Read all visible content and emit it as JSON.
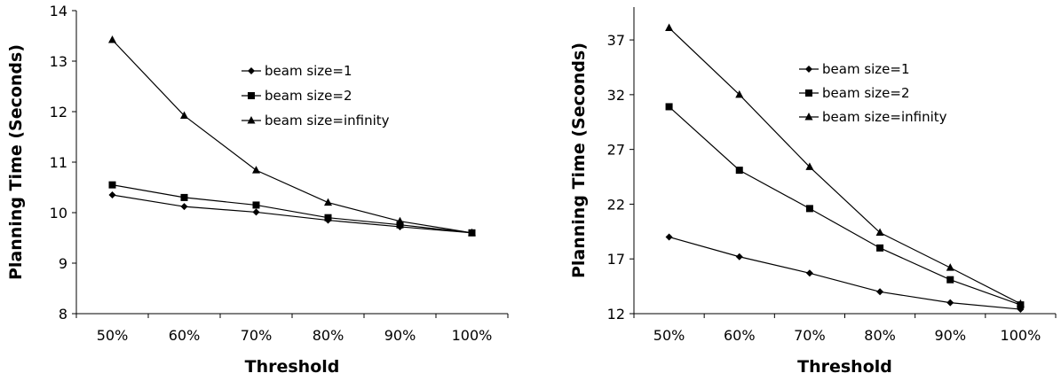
{
  "chart_data": [
    {
      "type": "line",
      "categories": [
        "50%",
        "60%",
        "70%",
        "80%",
        "90%",
        "100%"
      ],
      "xlabel": "Threshold",
      "ylabel": "Planning Time (Seconds)",
      "ylim": [
        8,
        14
      ],
      "yticks": [
        "8",
        "9",
        "10",
        "11",
        "12",
        "13",
        "14"
      ],
      "grid": false,
      "legend_position": "top-right",
      "series": [
        {
          "name": "beam size=1",
          "marker": "diamond",
          "values": [
            10.35,
            10.12,
            10.01,
            9.85,
            9.72,
            9.6
          ]
        },
        {
          "name": "beam size=2",
          "marker": "square",
          "values": [
            10.55,
            10.3,
            10.15,
            9.9,
            9.76,
            9.6
          ]
        },
        {
          "name": "beam size=infinity",
          "marker": "triangle",
          "values": [
            13.42,
            11.92,
            10.84,
            10.2,
            9.83,
            9.6
          ]
        }
      ]
    },
    {
      "type": "line",
      "categories": [
        "50%",
        "60%",
        "70%",
        "80%",
        "90%",
        "100%"
      ],
      "xlabel": "Threshold",
      "ylabel": "Planning Time (Seconds)",
      "ylim": [
        12,
        40
      ],
      "yticks": [
        "12",
        "17",
        "22",
        "27",
        "32",
        "37"
      ],
      "grid": false,
      "legend_position": "top-right",
      "series": [
        {
          "name": "beam size=1",
          "marker": "diamond",
          "values": [
            19.0,
            17.2,
            15.7,
            14.0,
            13.0,
            12.4
          ]
        },
        {
          "name": "beam size=2",
          "marker": "square",
          "values": [
            30.9,
            25.1,
            21.6,
            18.0,
            15.1,
            12.8
          ]
        },
        {
          "name": "beam size=infinity",
          "marker": "triangle",
          "values": [
            38.1,
            32.0,
            25.4,
            19.4,
            16.2,
            12.9
          ]
        }
      ]
    }
  ]
}
